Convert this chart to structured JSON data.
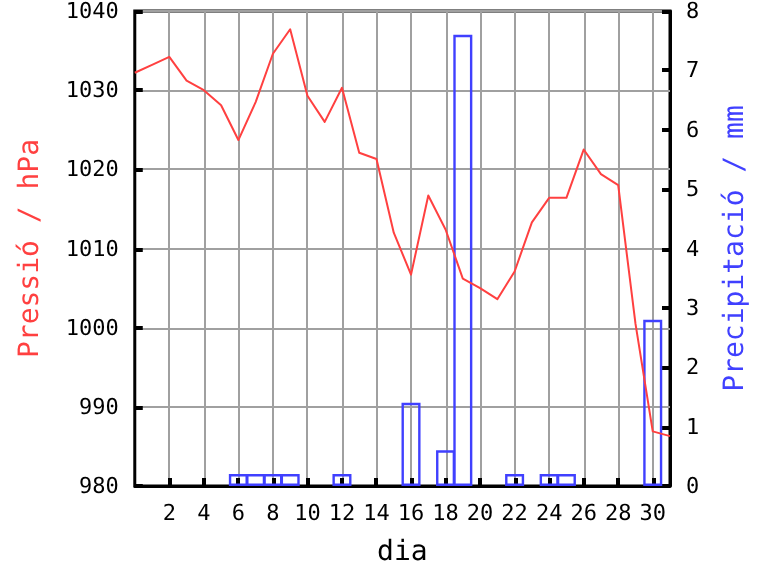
{
  "chart_data": {
    "type": "line",
    "xlabel": "dia",
    "ylabel": "Pressió / hPa",
    "y2label": "Precipitació / mm",
    "xlim": [
      0,
      31
    ],
    "xticks": [
      2,
      4,
      6,
      8,
      10,
      12,
      14,
      16,
      18,
      20,
      22,
      24,
      26,
      28,
      30
    ],
    "ylim": [
      980,
      1040
    ],
    "yticks": [
      980,
      990,
      1000,
      1010,
      1020,
      1030,
      1040
    ],
    "y2lim": [
      0,
      8
    ],
    "y2ticks": [
      0,
      1,
      2,
      3,
      4,
      5,
      6,
      7,
      8
    ],
    "grid": true,
    "marker": "none",
    "line_style": "solid",
    "series": [
      {
        "color": "#ff4040",
        "x": [
          0,
          1,
          2,
          3,
          4,
          5,
          6,
          7,
          8,
          9,
          10,
          11,
          12,
          13,
          14,
          15,
          16,
          17,
          18,
          19,
          20,
          21,
          22,
          23,
          24,
          25,
          26,
          27,
          28,
          29,
          30,
          31
        ],
        "values": [
          1032.2,
          1033.2,
          1034.2,
          1031.2,
          1030,
          1028.1,
          1023.7,
          1028.5,
          1034.6,
          1037.7,
          1029.3,
          1026,
          1030.3,
          1022.1,
          1021.3,
          1012,
          1006.7,
          1016.7,
          1012.4,
          1006.2,
          1005,
          1003.6,
          1007.1,
          1013.3,
          1016.4,
          1016.4,
          1022.5,
          1019.4,
          1018,
          1000.5,
          986.9,
          986.3
        ]
      },
      {
        "type": "bar",
        "axis": "y2",
        "color": "#4040ff",
        "x": [
          6,
          7,
          8,
          9,
          12,
          16,
          18,
          19,
          22,
          24,
          25,
          30
        ],
        "values": [
          0.2,
          0.2,
          0.2,
          0.2,
          0.2,
          1.4,
          0.6,
          7.6,
          0.2,
          0.2,
          0.2,
          2.8
        ]
      }
    ]
  }
}
